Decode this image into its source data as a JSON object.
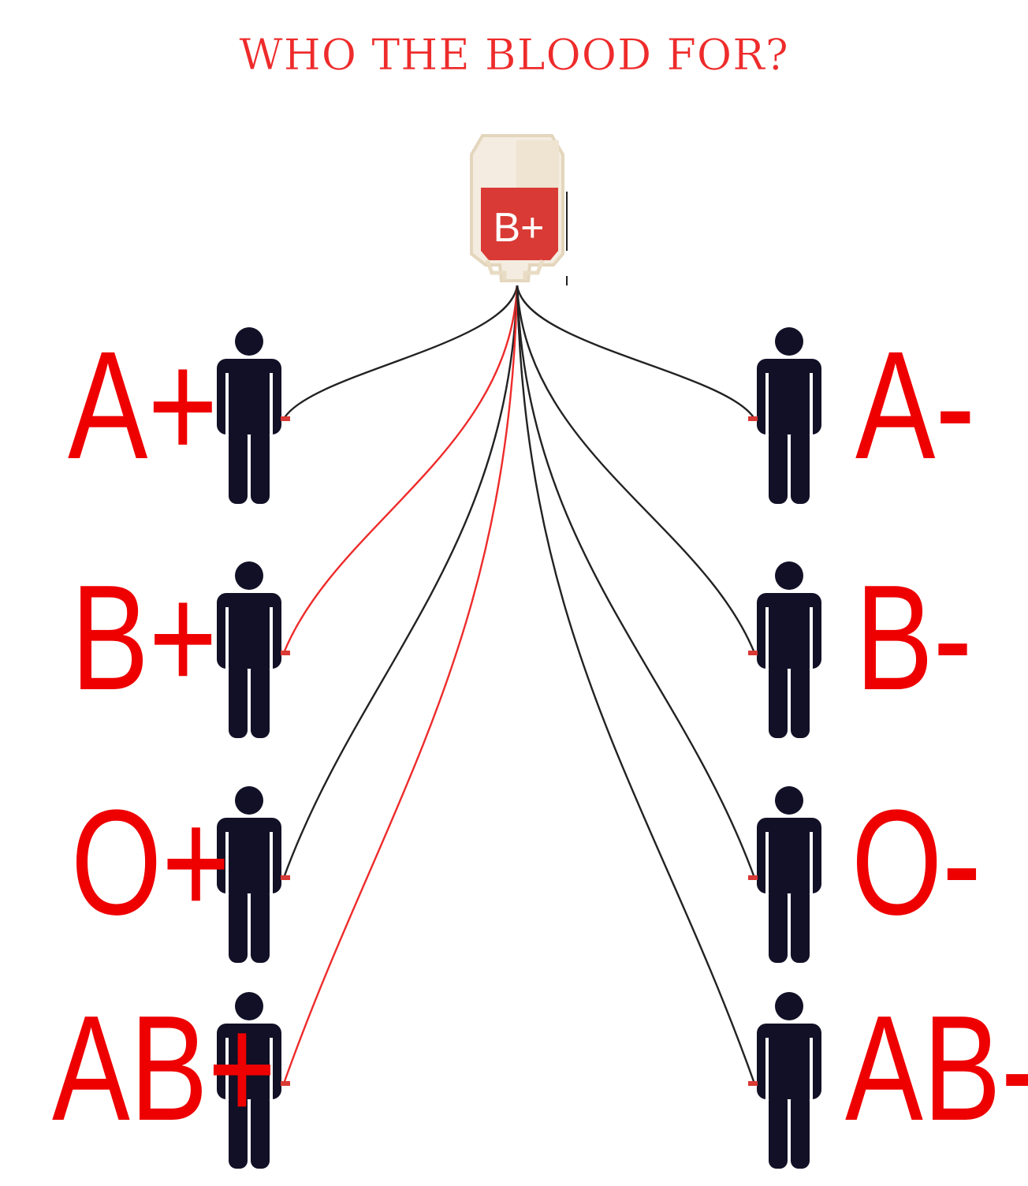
{
  "title": "WHO THE BLOOD FOR?",
  "donor": {
    "type": "B+",
    "bag_color": "#d93a35",
    "bag_frame_color": "#e9dcc4"
  },
  "colors": {
    "compatible_line": "#ee2b2b",
    "incompatible_line": "#222222",
    "label": "#ee0000",
    "person": "#121026"
  },
  "recipients": [
    {
      "id": "a-plus",
      "label": "A+",
      "side": "left",
      "compatible": false
    },
    {
      "id": "b-plus",
      "label": "B+",
      "side": "left",
      "compatible": true
    },
    {
      "id": "o-plus",
      "label": "O+",
      "side": "left",
      "compatible": false
    },
    {
      "id": "ab-plus",
      "label": "AB+",
      "side": "left",
      "compatible": true
    },
    {
      "id": "a-minus",
      "label": "A-",
      "side": "right",
      "compatible": false
    },
    {
      "id": "b-minus",
      "label": "B-",
      "side": "right",
      "compatible": false
    },
    {
      "id": "o-minus",
      "label": "O-",
      "side": "right",
      "compatible": false
    },
    {
      "id": "ab-minus",
      "label": "AB-",
      "side": "right",
      "compatible": false
    }
  ]
}
